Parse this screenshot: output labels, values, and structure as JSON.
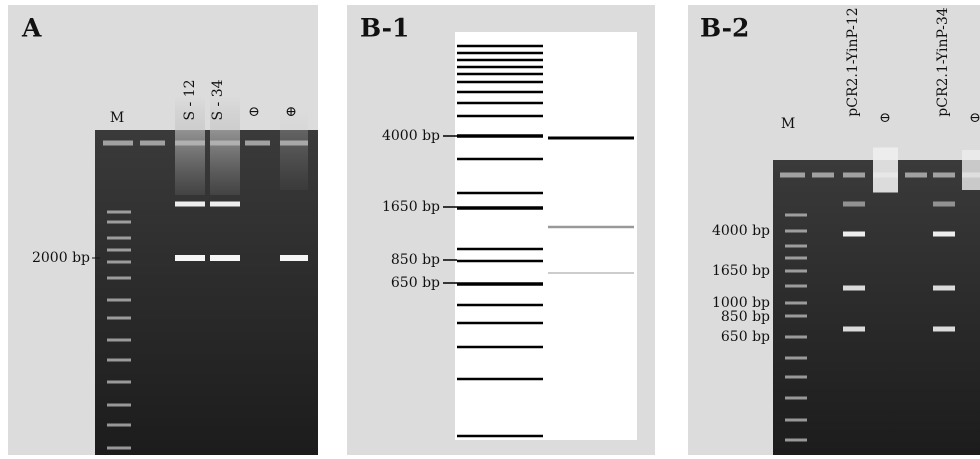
{
  "panels": [
    {
      "label": "A",
      "lanes": [
        "M",
        "S - 12",
        "S - 34",
        "⊖",
        "⊕"
      ],
      "markers": [
        "2000 bp"
      ]
    },
    {
      "label": "B-1",
      "markers": [
        "4000 bp",
        "1650 bp",
        "850 bp",
        "650 bp"
      ]
    },
    {
      "label": "B-2",
      "lanes": [
        "M",
        "pCR2.1-YinP-12",
        "⊖",
        "pCR2.1-YinP-34",
        "⊖"
      ],
      "markers": [
        "4000 bp",
        "1650 bp",
        "1000 bp",
        "850 bp",
        "650 bp"
      ]
    }
  ]
}
